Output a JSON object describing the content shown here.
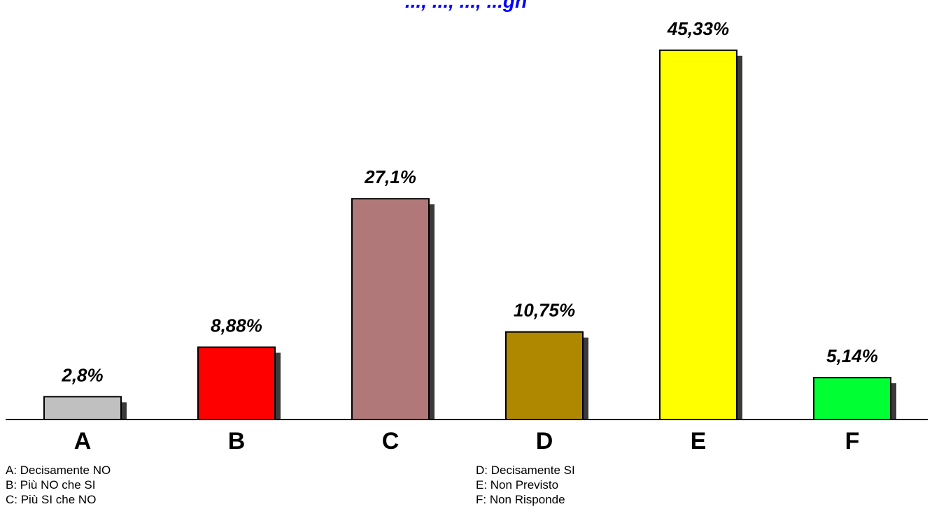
{
  "chart_data": {
    "type": "bar",
    "title": "..., ..., ..., ...gn",
    "categories": [
      "A",
      "B",
      "C",
      "D",
      "E",
      "F"
    ],
    "values": [
      2.8,
      8.88,
      27.1,
      10.75,
      45.33,
      5.14
    ],
    "data_labels": [
      "2,8%",
      "8,88%",
      "27,1%",
      "10,75%",
      "45,33%",
      "5,14%"
    ],
    "colors": [
      "#c0c0c0",
      "#ff0000",
      "#b07878",
      "#b08800",
      "#ffff00",
      "#00ff33"
    ],
    "shadow_color": "#3a3a3a",
    "title_color": "#0000ff",
    "ylim": [
      0,
      46
    ],
    "grid": false,
    "xlabel": "",
    "ylabel": ""
  },
  "legend": {
    "left": [
      "A: Decisamente NO",
      "B: Più NO che SI",
      "C: Più SI che NO"
    ],
    "right": [
      "D: Decisamente SI",
      "E: Non Previsto",
      "F: Non Risponde"
    ]
  }
}
